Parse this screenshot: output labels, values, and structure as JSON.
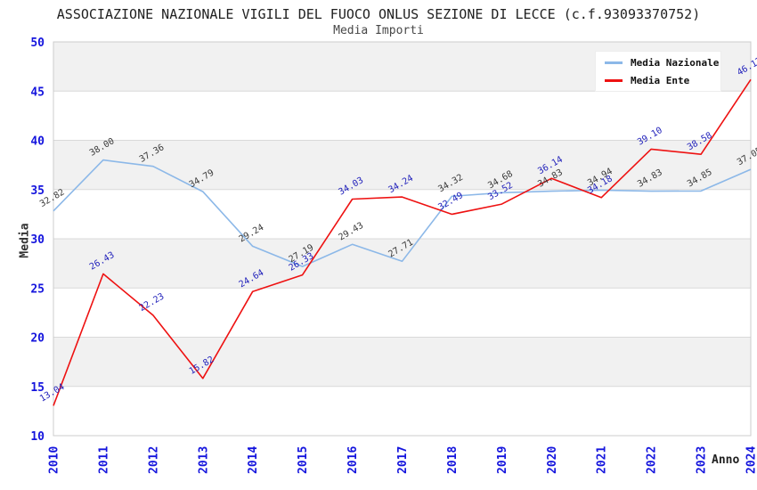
{
  "chart_data": {
    "type": "line",
    "title": "ASSOCIAZIONE NAZIONALE VIGILI DEL FUOCO ONLUS SEZIONE DI LECCE (c.f.93093370752)",
    "subtitle": "Media Importi",
    "xlabel": "Anno",
    "ylabel": "Media",
    "categories": [
      "2010",
      "2011",
      "2012",
      "2013",
      "2014",
      "2015",
      "2016",
      "2017",
      "2018",
      "2019",
      "2020",
      "2021",
      "2022",
      "2023",
      "2024"
    ],
    "ylim": [
      10,
      50
    ],
    "ytick_step": 5,
    "grid": true,
    "legend_position": "top-right",
    "series": [
      {
        "name": "Media Nazionale",
        "color": "#8cb8e8",
        "label_color": "#3a3a3a",
        "values": [
          32.82,
          38.0,
          37.36,
          34.79,
          29.24,
          27.19,
          29.43,
          27.71,
          34.32,
          34.68,
          34.83,
          34.94,
          34.83,
          34.85,
          37.05
        ]
      },
      {
        "name": "Media Ente",
        "color": "#ee1111",
        "label_color": "#2222bb",
        "values": [
          13.04,
          26.43,
          22.23,
          15.82,
          24.64,
          26.33,
          34.03,
          34.24,
          32.49,
          33.52,
          36.14,
          34.18,
          39.1,
          38.58,
          46.17
        ]
      }
    ],
    "colors": {
      "band_gray": "#f1f1f1",
      "band_white": "#ffffff",
      "grid_line": "#d9d9d9",
      "plot_border": "#cccccc",
      "axis_tick_color": "#1414dd",
      "title_color": "#1f1f1f",
      "subtitle_color": "#474747",
      "axis_title_color": "#333333",
      "legend_bg": "#ffffff"
    }
  }
}
